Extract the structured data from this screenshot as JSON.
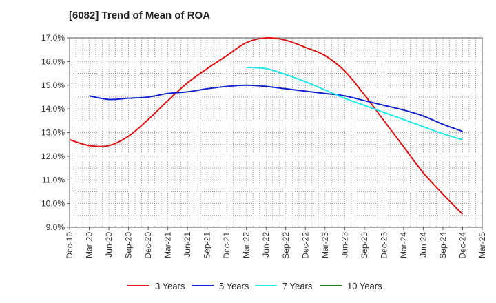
{
  "chart_data": {
    "type": "line",
    "title": "[6082]  Trend of Mean of ROA",
    "xlabel": "",
    "ylabel": "",
    "ylim": [
      9.0,
      17.0
    ],
    "y_ticks": [
      "9.0%",
      "10.0%",
      "11.0%",
      "12.0%",
      "13.0%",
      "14.0%",
      "15.0%",
      "16.0%",
      "17.0%"
    ],
    "y_tick_values": [
      9,
      10,
      11,
      12,
      13,
      14,
      15,
      16,
      17
    ],
    "categories": [
      "Dec-19",
      "Mar-20",
      "Jun-20",
      "Sep-20",
      "Dec-20",
      "Mar-21",
      "Jun-21",
      "Sep-21",
      "Dec-21",
      "Mar-22",
      "Jun-22",
      "Sep-22",
      "Dec-22",
      "Mar-23",
      "Jun-23",
      "Sep-23",
      "Dec-23",
      "Mar-24",
      "Jun-24",
      "Sep-24",
      "Dec-24",
      "Mar-25"
    ],
    "grid": true,
    "legend_position": "bottom",
    "series": [
      {
        "name": "3 Years",
        "color": "#dd1111",
        "values": [
          12.7,
          12.45,
          12.45,
          12.85,
          13.55,
          14.35,
          15.1,
          15.7,
          16.25,
          16.8,
          17.0,
          16.9,
          16.6,
          16.25,
          15.6,
          14.6,
          13.5,
          12.4,
          11.3,
          10.4,
          9.55,
          null
        ]
      },
      {
        "name": "5 Years",
        "color": "#1122cc",
        "values": [
          null,
          14.55,
          14.4,
          14.45,
          14.5,
          14.65,
          14.72,
          14.85,
          14.95,
          15.0,
          14.95,
          14.85,
          14.75,
          14.65,
          14.55,
          14.35,
          14.15,
          13.95,
          13.7,
          13.35,
          13.05,
          null
        ]
      },
      {
        "name": "7 Years",
        "color": "#22e8e8",
        "values": [
          null,
          null,
          null,
          null,
          null,
          null,
          null,
          null,
          null,
          15.75,
          15.7,
          15.45,
          15.15,
          14.8,
          14.45,
          14.15,
          13.85,
          13.55,
          13.25,
          12.95,
          12.7,
          null
        ]
      },
      {
        "name": "10 Years",
        "color": "#118811",
        "values": [
          null,
          null,
          null,
          null,
          null,
          null,
          null,
          null,
          null,
          null,
          null,
          null,
          null,
          null,
          null,
          null,
          null,
          null,
          null,
          null,
          null,
          null
        ]
      }
    ]
  }
}
